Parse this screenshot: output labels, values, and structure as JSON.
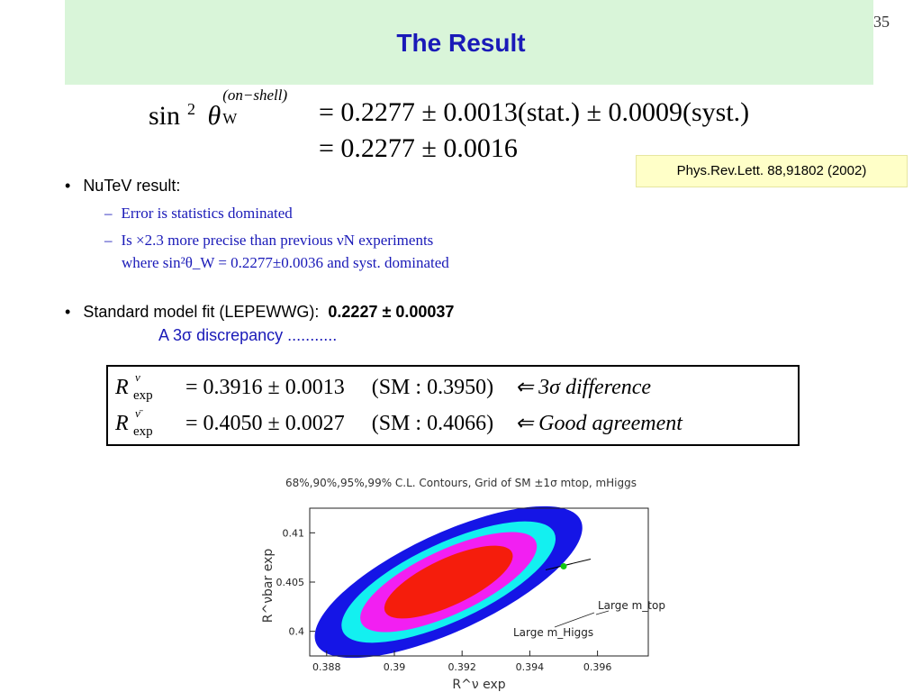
{
  "slide": {
    "title": "The Result",
    "page_number": "35"
  },
  "equations": {
    "sin2_line1_lhs": "sin",
    "sin2_exp": "2",
    "theta": "θ",
    "theta_sub": "W",
    "theta_sup": "(on−shell)",
    "line1_rhs": "= 0.2277 ± 0.0013(stat.) ± 0.0009(syst.)",
    "line2_rhs": "= 0.2277 ± 0.0016"
  },
  "reference": "Phys.Rev.Lett. 88,91802 (2002)",
  "bullets": {
    "nutev": "NuTeV result:",
    "sub1": "Error is statistics dominated",
    "sub2_line1": "Is ×2.3 more precise than previous νN experiments",
    "sub2_line2": "where sin²θ_W = 0.2277±0.0036 and syst. dominated",
    "sm_fit_label": "Standard model fit (LEPEWWG):",
    "sm_fit_value": "0.2227 ± 0.00037",
    "discrepancy": "A 3σ discrepancy ..........."
  },
  "r_box": {
    "row1": {
      "lhs": "R",
      "sup": "ν",
      "sub": "exp",
      "value": "= 0.3916 ± 0.0013",
      "sm": "(SM : 0.3950)",
      "note": "⇐ 3σ difference"
    },
    "row2": {
      "lhs": "R",
      "sup": "ν̄",
      "sub": "exp",
      "value": "= 0.4050 ± 0.0027",
      "sm": "(SM : 0.4066)",
      "note": "⇐ Good agreement"
    }
  },
  "chart_data": {
    "type": "contour",
    "title": "68%,90%,95%,99% C.L. Contours, Grid of SM ±1σ mtop, mHiggs",
    "xlabel": "R^ν exp",
    "ylabel": "R^νbar exp",
    "xticks": [
      "0.388",
      "0.39",
      "0.392",
      "0.394",
      "0.396"
    ],
    "yticks": [
      "0.4",
      "0.405",
      "0.41"
    ],
    "xlim": [
      0.3875,
      0.3975
    ],
    "ylim": [
      0.3975,
      0.4125
    ],
    "center": [
      0.3916,
      0.405
    ],
    "contours": [
      {
        "level": "99%",
        "color": "#1515e6"
      },
      {
        "level": "95%",
        "color": "#13f0f0"
      },
      {
        "level": "90%",
        "color": "#f21ff2"
      },
      {
        "level": "68%",
        "color": "#f51d0c"
      }
    ],
    "sm_point": [
      0.395,
      0.4066
    ],
    "annotations": [
      "Large m_top",
      "Large m_Higgs"
    ]
  }
}
